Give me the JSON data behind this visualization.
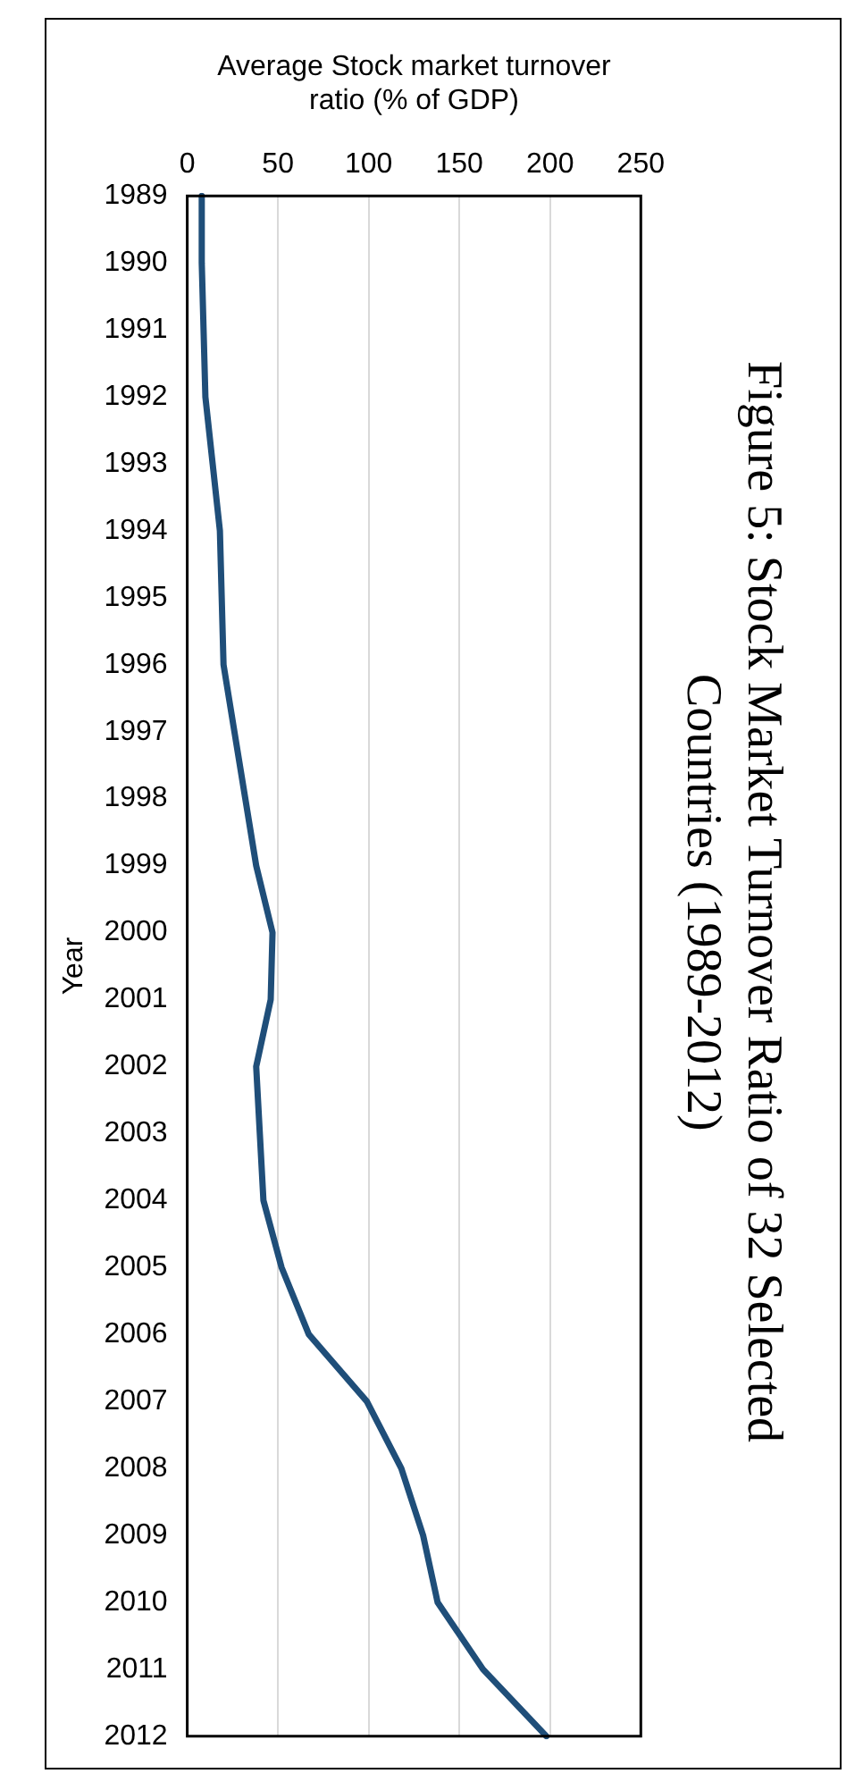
{
  "chart_data": {
    "type": "line",
    "orientation": "horizontal",
    "title": "Figure 5: Stock Market Turnover Ratio of 32 Selected Countries (1989-2012)",
    "xlabel": "Average Stock market turnover ratio (% of GDP)",
    "ylabel": "Year",
    "categories": [
      "1989",
      "1990",
      "1991",
      "1992",
      "1993",
      "1994",
      "1995",
      "1996",
      "1997",
      "1998",
      "1999",
      "2000",
      "2001",
      "2002",
      "2003",
      "2004",
      "2005",
      "2006",
      "2007",
      "2008",
      "2009",
      "2010",
      "2011",
      "2012"
    ],
    "series": [
      {
        "color": "#1f4e79",
        "values": [
          8,
          8,
          9,
          10,
          14,
          18,
          19,
          20,
          26,
          32,
          38,
          47,
          46,
          38,
          40,
          42,
          52,
          67,
          99,
          118,
          130,
          138,
          163,
          198
        ]
      }
    ],
    "xlim": [
      0,
      250
    ],
    "xticks": [
      0,
      50,
      100,
      150,
      200,
      250
    ],
    "grid": "x",
    "legend": false,
    "marker": "none",
    "line_style": "solid"
  }
}
